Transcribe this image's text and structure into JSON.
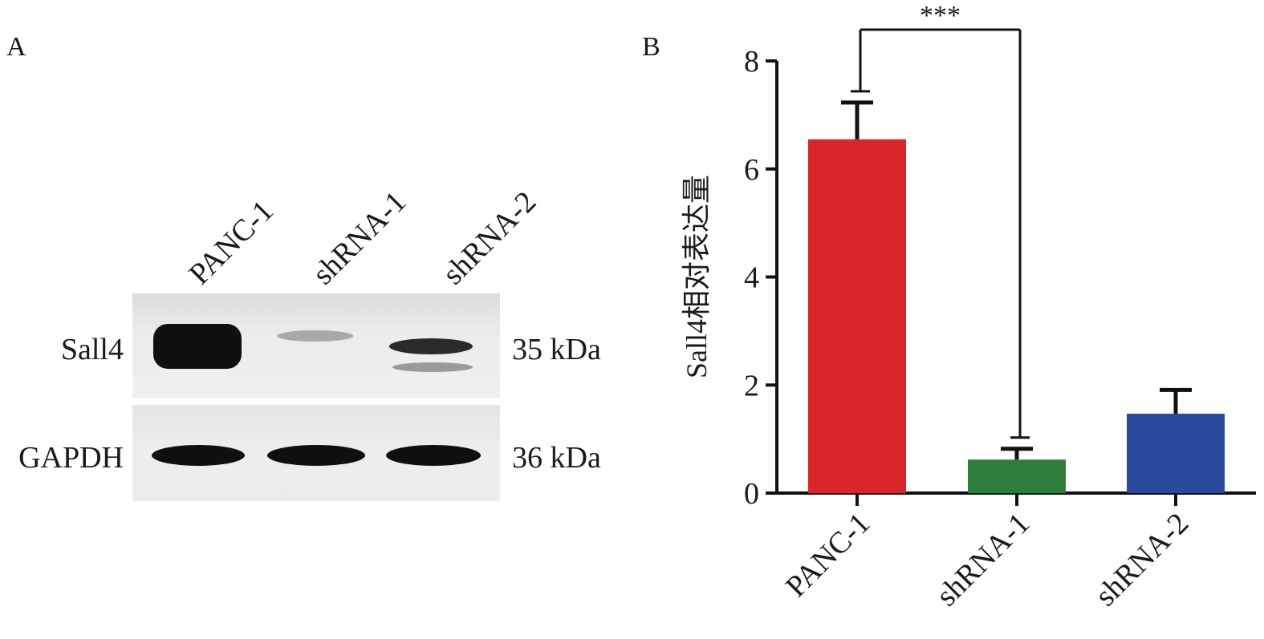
{
  "panels": {
    "a": "A",
    "b": "B"
  },
  "blot": {
    "lanes": [
      "PANC-1",
      "shRNA-1",
      "shRNA-2"
    ],
    "rows": [
      {
        "label": "Sall4",
        "size": "35 kDa"
      },
      {
        "label": "GAPDH",
        "size": "36 kDa"
      }
    ]
  },
  "chart_data": {
    "type": "bar",
    "categories": [
      "PANC-1",
      "shRNA-1",
      "shRNA-2"
    ],
    "values": [
      6.55,
      0.62,
      1.47
    ],
    "errors": [
      0.68,
      0.2,
      0.44
    ],
    "colors": [
      "#d9262a",
      "#2e7d3a",
      "#2b4a9e"
    ],
    "title": "",
    "xlabel": "",
    "ylabel": "Sall4相对表达量",
    "ylim": [
      0,
      8
    ],
    "yticks": [
      "0",
      "2",
      "4",
      "6",
      "8"
    ],
    "significance": {
      "label": "***",
      "from": "PANC-1",
      "to": "shRNA-1"
    },
    "grid": false,
    "legend": "none"
  }
}
